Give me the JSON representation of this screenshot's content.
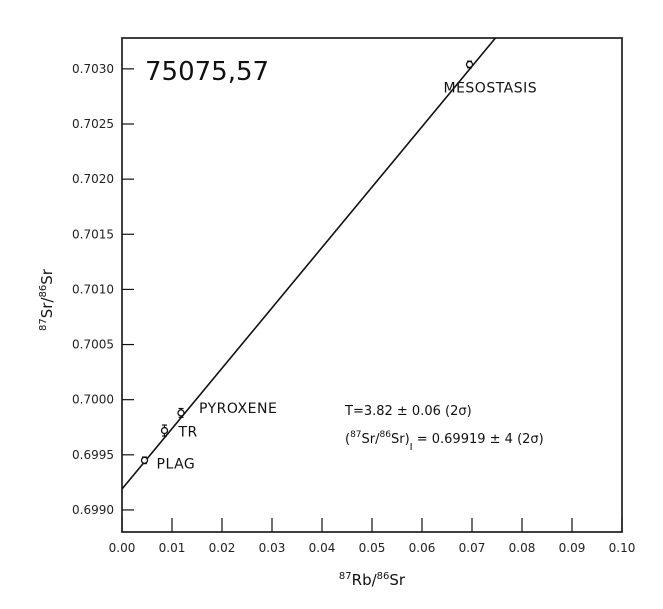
{
  "chart_data": {
    "type": "scatter",
    "title": "75075,57",
    "xlabel": {
      "sup1": "87",
      "main1": "Rb/",
      "sup2": "86",
      "main2": "Sr"
    },
    "ylabel": {
      "sup1": "87",
      "main1": "Sr/",
      "sup2": "86",
      "main2": "Sr"
    },
    "xlim": [
      0.0,
      0.1
    ],
    "ylim": [
      0.6988,
      0.70328
    ],
    "x_ticks": [
      "0.00",
      "0.01",
      "0.02",
      "0.03",
      "0.04",
      "0.05",
      "0.06",
      "0.07",
      "0.08",
      "0.09",
      "0.10"
    ],
    "y_ticks": [
      "0.6990",
      "0.6995",
      "0.7000",
      "0.7005",
      "0.7010",
      "0.7015",
      "0.7020",
      "0.7025",
      "0.7030"
    ],
    "grid": false,
    "points": [
      {
        "label": "PLAG",
        "x": 0.0045,
        "y": 0.69945,
        "err": 3e-05
      },
      {
        "label": "TR",
        "x": 0.0085,
        "y": 0.69972,
        "err": 5e-05
      },
      {
        "label": "PYROXENE",
        "x": 0.0118,
        "y": 0.69988,
        "err": 4e-05
      },
      {
        "label": "MESOSTASIS",
        "x": 0.0695,
        "y": 0.70304,
        "err": 3e-05
      }
    ],
    "isochron": {
      "x0": 0.0,
      "y0": 0.69919,
      "slope": 0.05476
    },
    "annotations": {
      "age": "T=3.82 ± 0.06 (2σ)",
      "initial_ratio": {
        "open": "(",
        "sup1": "87",
        "a": "Sr/",
        "sup2": "86",
        "b": "Sr)",
        "sub": "I",
        "value": " = 0.69919 ± 4 (2σ)"
      }
    }
  }
}
